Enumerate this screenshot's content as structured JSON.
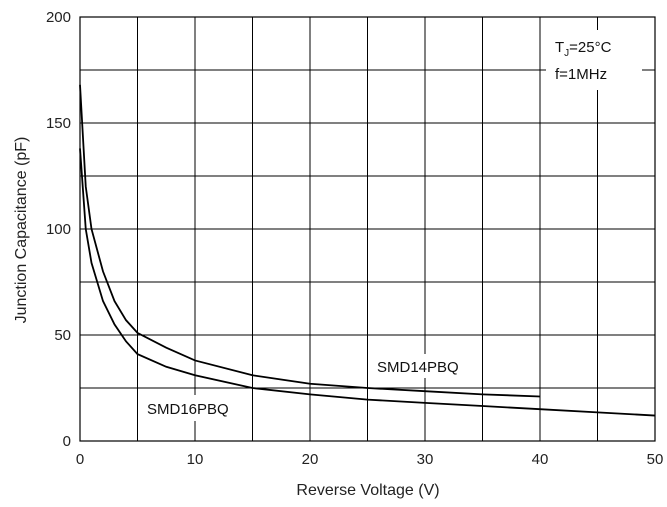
{
  "chart_data": {
    "type": "line",
    "xlabel": "Reverse Voltage (V)",
    "ylabel": "Junction Capacitance (pF)",
    "xlim": [
      0,
      50
    ],
    "ylim": [
      0,
      200
    ],
    "x_ticks": [
      "0",
      "10",
      "20",
      "30",
      "40",
      "50"
    ],
    "y_ticks": [
      "0",
      "50",
      "100",
      "150",
      "200"
    ],
    "grid": true,
    "annotations": {
      "condition_prefix": "T",
      "condition_sub": "J",
      "condition_value": "=25°C",
      "frequency": "f=1MHz"
    },
    "series": [
      {
        "name": "SMD14PBQ",
        "x": [
          0,
          0.5,
          1,
          2,
          3,
          4,
          5,
          7.5,
          10,
          15,
          20,
          25,
          30,
          35,
          40
        ],
        "y": [
          168,
          120,
          100,
          80,
          66,
          57,
          51,
          44,
          38,
          31,
          27,
          25,
          23.5,
          22,
          21
        ]
      },
      {
        "name": "SMD16PBQ",
        "x": [
          0,
          0.5,
          1,
          2,
          3,
          4,
          5,
          7.5,
          10,
          15,
          20,
          25,
          30,
          35,
          40,
          45,
          50
        ],
        "y": [
          138,
          100,
          84,
          66,
          55,
          47,
          41,
          35,
          31,
          25,
          22,
          19.5,
          18,
          16.5,
          15,
          13.5,
          12
        ]
      }
    ]
  }
}
